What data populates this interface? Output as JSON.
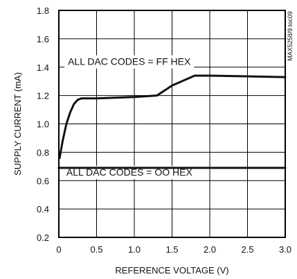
{
  "chart_data": {
    "type": "line",
    "xlabel": "REFERENCE VOLTAGE (V)",
    "ylabel": "SUPPLY CURRENT (mA)",
    "xlim": [
      0,
      3.0
    ],
    "ylim": [
      0.2,
      1.8
    ],
    "x_ticks": [
      {
        "value": 0,
        "label": "0"
      },
      {
        "value": 0.5,
        "label": "0.5"
      },
      {
        "value": 1.0,
        "label": "1.0"
      },
      {
        "value": 1.5,
        "label": "1.5"
      },
      {
        "value": 2.0,
        "label": "2.0"
      },
      {
        "value": 2.5,
        "label": "2.5"
      },
      {
        "value": 3.0,
        "label": "3.0"
      }
    ],
    "y_ticks": [
      {
        "value": 0.2,
        "label": "0.2"
      },
      {
        "value": 0.4,
        "label": "0.4"
      },
      {
        "value": 0.6,
        "label": "0.6"
      },
      {
        "value": 0.8,
        "label": "0.8"
      },
      {
        "value": 1.0,
        "label": "1.0"
      },
      {
        "value": 1.2,
        "label": "1.2"
      },
      {
        "value": 1.4,
        "label": "1.4"
      },
      {
        "value": 1.6,
        "label": "1.6"
      },
      {
        "value": 1.8,
        "label": "1.8"
      }
    ],
    "grid": true,
    "series": [
      {
        "x": [
          0.01,
          0.05,
          0.1,
          0.15,
          0.2,
          0.25,
          0.3,
          0.5,
          1.0,
          1.3,
          1.5,
          1.8,
          2.0,
          2.5,
          3.0
        ],
        "y": [
          0.76,
          0.88,
          1.0,
          1.08,
          1.14,
          1.17,
          1.18,
          1.18,
          1.19,
          1.2,
          1.27,
          1.34,
          1.34,
          1.335,
          1.33
        ]
      },
      {
        "x": [
          0,
          3.0
        ],
        "y": [
          0.69,
          0.69
        ]
      }
    ],
    "annotations": [
      {
        "text": "ALL DAC CODES = FF HEX",
        "x": 0.12,
        "y": 1.415
      },
      {
        "text": "ALL DAC CODES = OO HEX",
        "x": 0.1,
        "y": 0.635
      }
    ],
    "side_label": "MAX5258/9 toc09"
  }
}
